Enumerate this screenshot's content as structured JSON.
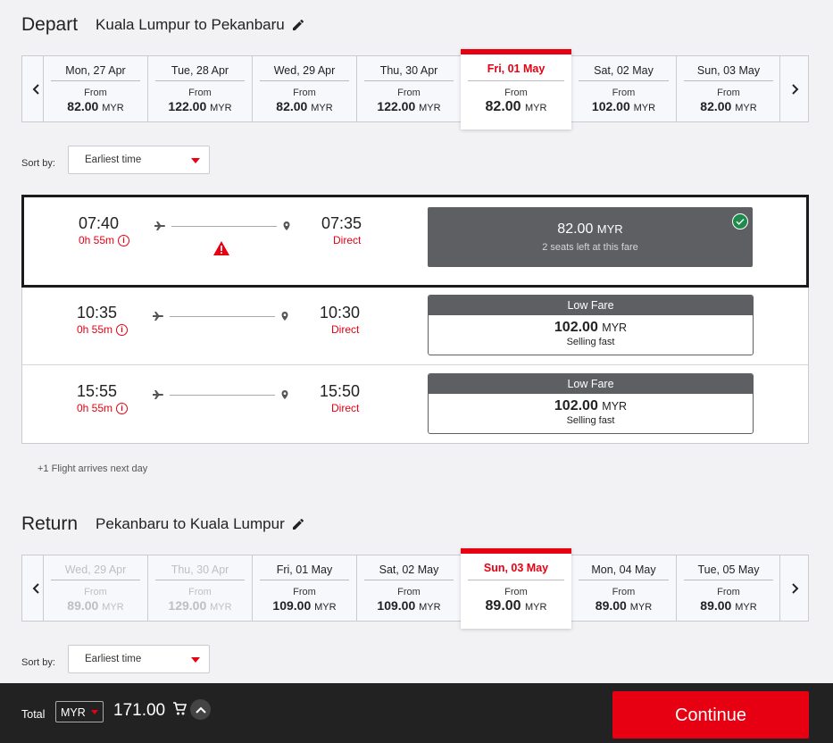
{
  "depart": {
    "label": "Depart",
    "route": "Kuala Lumpur to Pekanbaru",
    "dates": [
      {
        "day": "Mon, 27 Apr",
        "from": "From",
        "amount": "82.00",
        "currency": "MYR"
      },
      {
        "day": "Tue, 28 Apr",
        "from": "From",
        "amount": "122.00",
        "currency": "MYR"
      },
      {
        "day": "Wed, 29 Apr",
        "from": "From",
        "amount": "82.00",
        "currency": "MYR"
      },
      {
        "day": "Thu, 30 Apr",
        "from": "From",
        "amount": "122.00",
        "currency": "MYR"
      },
      {
        "day": "Fri, 01 May",
        "from": "From",
        "amount": "82.00",
        "currency": "MYR"
      },
      {
        "day": "Sat, 02 May",
        "from": "From",
        "amount": "102.00",
        "currency": "MYR"
      },
      {
        "day": "Sun, 03 May",
        "from": "From",
        "amount": "82.00",
        "currency": "MYR"
      }
    ],
    "sort_label": "Sort by:",
    "sort_value": "Earliest time"
  },
  "flights": [
    {
      "dep": "07:40",
      "duration": "0h 55m",
      "arr": "07:35",
      "stops": "Direct",
      "fare_amount": "82.00",
      "fare_currency": "MYR",
      "fare_note": "2 seats left at this fare"
    },
    {
      "dep": "10:35",
      "duration": "0h 55m",
      "arr": "10:30",
      "stops": "Direct",
      "fare_tag": "Low Fare",
      "fare_amount": "102.00",
      "fare_currency": "MYR",
      "fare_note": "Selling fast"
    },
    {
      "dep": "15:55",
      "duration": "0h 55m",
      "arr": "15:50",
      "stops": "Direct",
      "fare_tag": "Low Fare",
      "fare_amount": "102.00",
      "fare_currency": "MYR",
      "fare_note": "Selling fast"
    }
  ],
  "next_day_note": "+1 Flight arrives next day",
  "return": {
    "label": "Return",
    "route": "Pekanbaru to Kuala Lumpur",
    "dates": [
      {
        "day": "Wed, 29 Apr",
        "from": "From",
        "amount": "89.00",
        "currency": "MYR"
      },
      {
        "day": "Thu, 30 Apr",
        "from": "From",
        "amount": "129.00",
        "currency": "MYR"
      },
      {
        "day": "Fri, 01 May",
        "from": "From",
        "amount": "109.00",
        "currency": "MYR"
      },
      {
        "day": "Sat, 02 May",
        "from": "From",
        "amount": "109.00",
        "currency": "MYR"
      },
      {
        "day": "Sun, 03 May",
        "from": "From",
        "amount": "89.00",
        "currency": "MYR"
      },
      {
        "day": "Mon, 04 May",
        "from": "From",
        "amount": "89.00",
        "currency": "MYR"
      },
      {
        "day": "Tue, 05 May",
        "from": "From",
        "amount": "89.00",
        "currency": "MYR"
      }
    ],
    "sort_label": "Sort by:",
    "sort_value": "Earliest time"
  },
  "footer": {
    "total_label": "Total",
    "currency": "MYR",
    "total_amount": "171.00",
    "continue_label": "Continue"
  },
  "colors": {
    "accent": "#e60012",
    "fare_dark": "#5e5f63",
    "check": "#1e8a4c",
    "footer_bg": "#222222"
  },
  "icons": [
    "pencil-icon",
    "chevron-left-icon",
    "chevron-right-icon",
    "caret-down-icon",
    "plane-icon",
    "location-pin-icon",
    "info-icon",
    "warning-icon",
    "check-icon",
    "cart-icon",
    "chevron-up-icon"
  ]
}
